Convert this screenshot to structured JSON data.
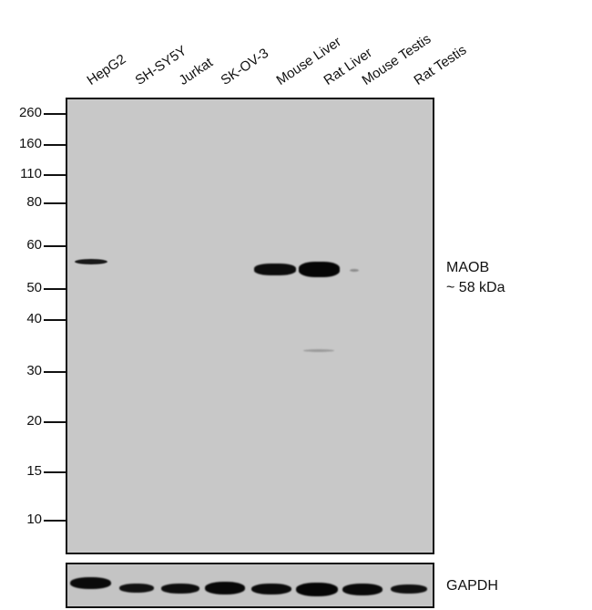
{
  "lanes": [
    "HepG2",
    "SH-SY5Y",
    "Jurkat",
    "SK-OV-3",
    "Mouse Liver",
    "Rat Liver",
    "Mouse Testis",
    "Rat Testis"
  ],
  "markers": [
    "260",
    "160",
    "110",
    "80",
    "60",
    "50",
    "40",
    "30",
    "20",
    "15",
    "10"
  ],
  "target": {
    "name": "MAOB",
    "size": "~ 58 kDa"
  },
  "loading_control": "GAPDH"
}
